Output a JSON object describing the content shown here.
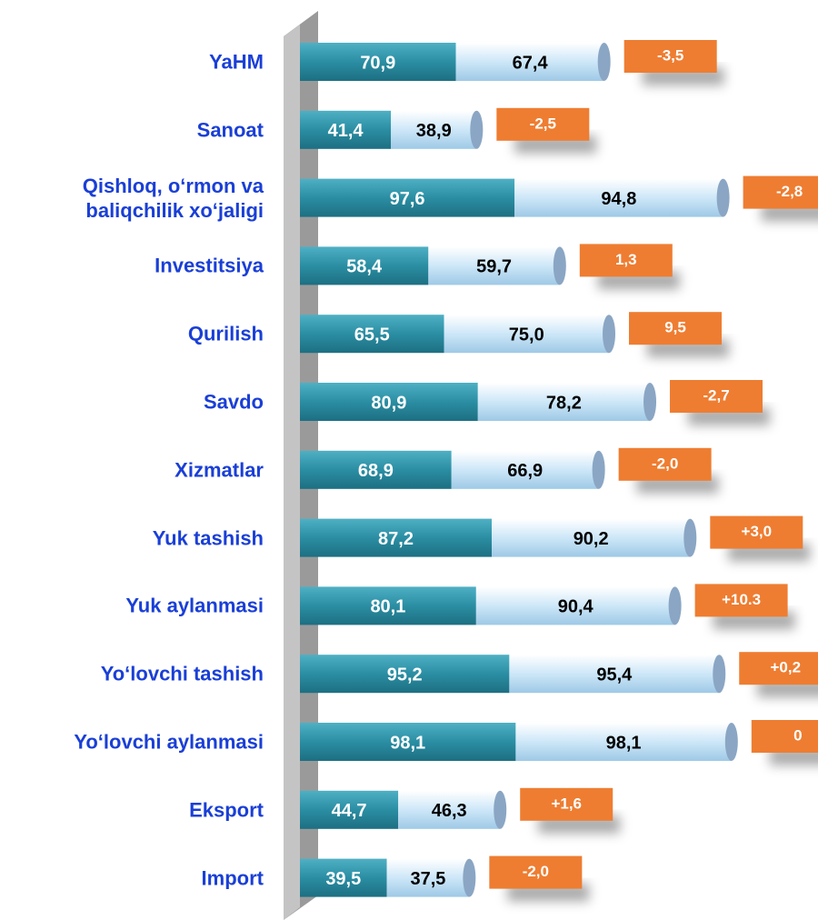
{
  "chart_data": {
    "type": "stacked-bar-horizontal",
    "categories": [
      "YaHM",
      "Sanoat",
      "Qishloq, o‘rmon va baliqchilik xo‘jaligi",
      "Investitsiya",
      "Qurilish",
      "Savdo",
      "Xizmatlar",
      "Yuk tashish",
      "Yuk aylanmasi",
      "Yo‘lovchi tashish",
      "Yo‘lovchi aylanmasi",
      "Eksport",
      "Import"
    ],
    "series": [
      {
        "color": "#2b8ea3",
        "values": [
          70.9,
          41.4,
          97.6,
          58.4,
          65.5,
          80.9,
          68.9,
          87.2,
          80.1,
          95.2,
          98.1,
          44.7,
          39.5
        ],
        "value_labels": [
          "70,9",
          "41,4",
          "97,6",
          "58,4",
          "65,5",
          "80,9",
          "68,9",
          "87,2",
          "80,1",
          "95,2",
          "98,1",
          "44,7",
          "39,5"
        ]
      },
      {
        "color": "#cde7f8",
        "values": [
          67.4,
          38.9,
          94.8,
          59.7,
          75.0,
          78.2,
          66.9,
          90.2,
          90.4,
          95.4,
          98.1,
          46.3,
          37.5
        ],
        "value_labels": [
          "67,4",
          "38,9",
          "94,8",
          "59,7",
          "75,0",
          "78,2",
          "66,9",
          "90,2",
          "90,4",
          "95,4",
          "98,1",
          "46,3",
          "37,5"
        ]
      }
    ],
    "differences": {
      "color": "#ee7d31",
      "values": [
        -3.5,
        -2.5,
        -2.8,
        1.3,
        9.5,
        -2.7,
        -2.0,
        3.0,
        10.3,
        0.2,
        0,
        1.6,
        -2.0
      ],
      "value_labels": [
        "-3,5",
        "-2,5",
        "-2,8",
        "1,3",
        "9,5",
        "-2,7",
        "-2,0",
        "+3,0",
        "+10.3",
        "+0,2",
        "0",
        "+1,6",
        "-2,0"
      ]
    }
  }
}
